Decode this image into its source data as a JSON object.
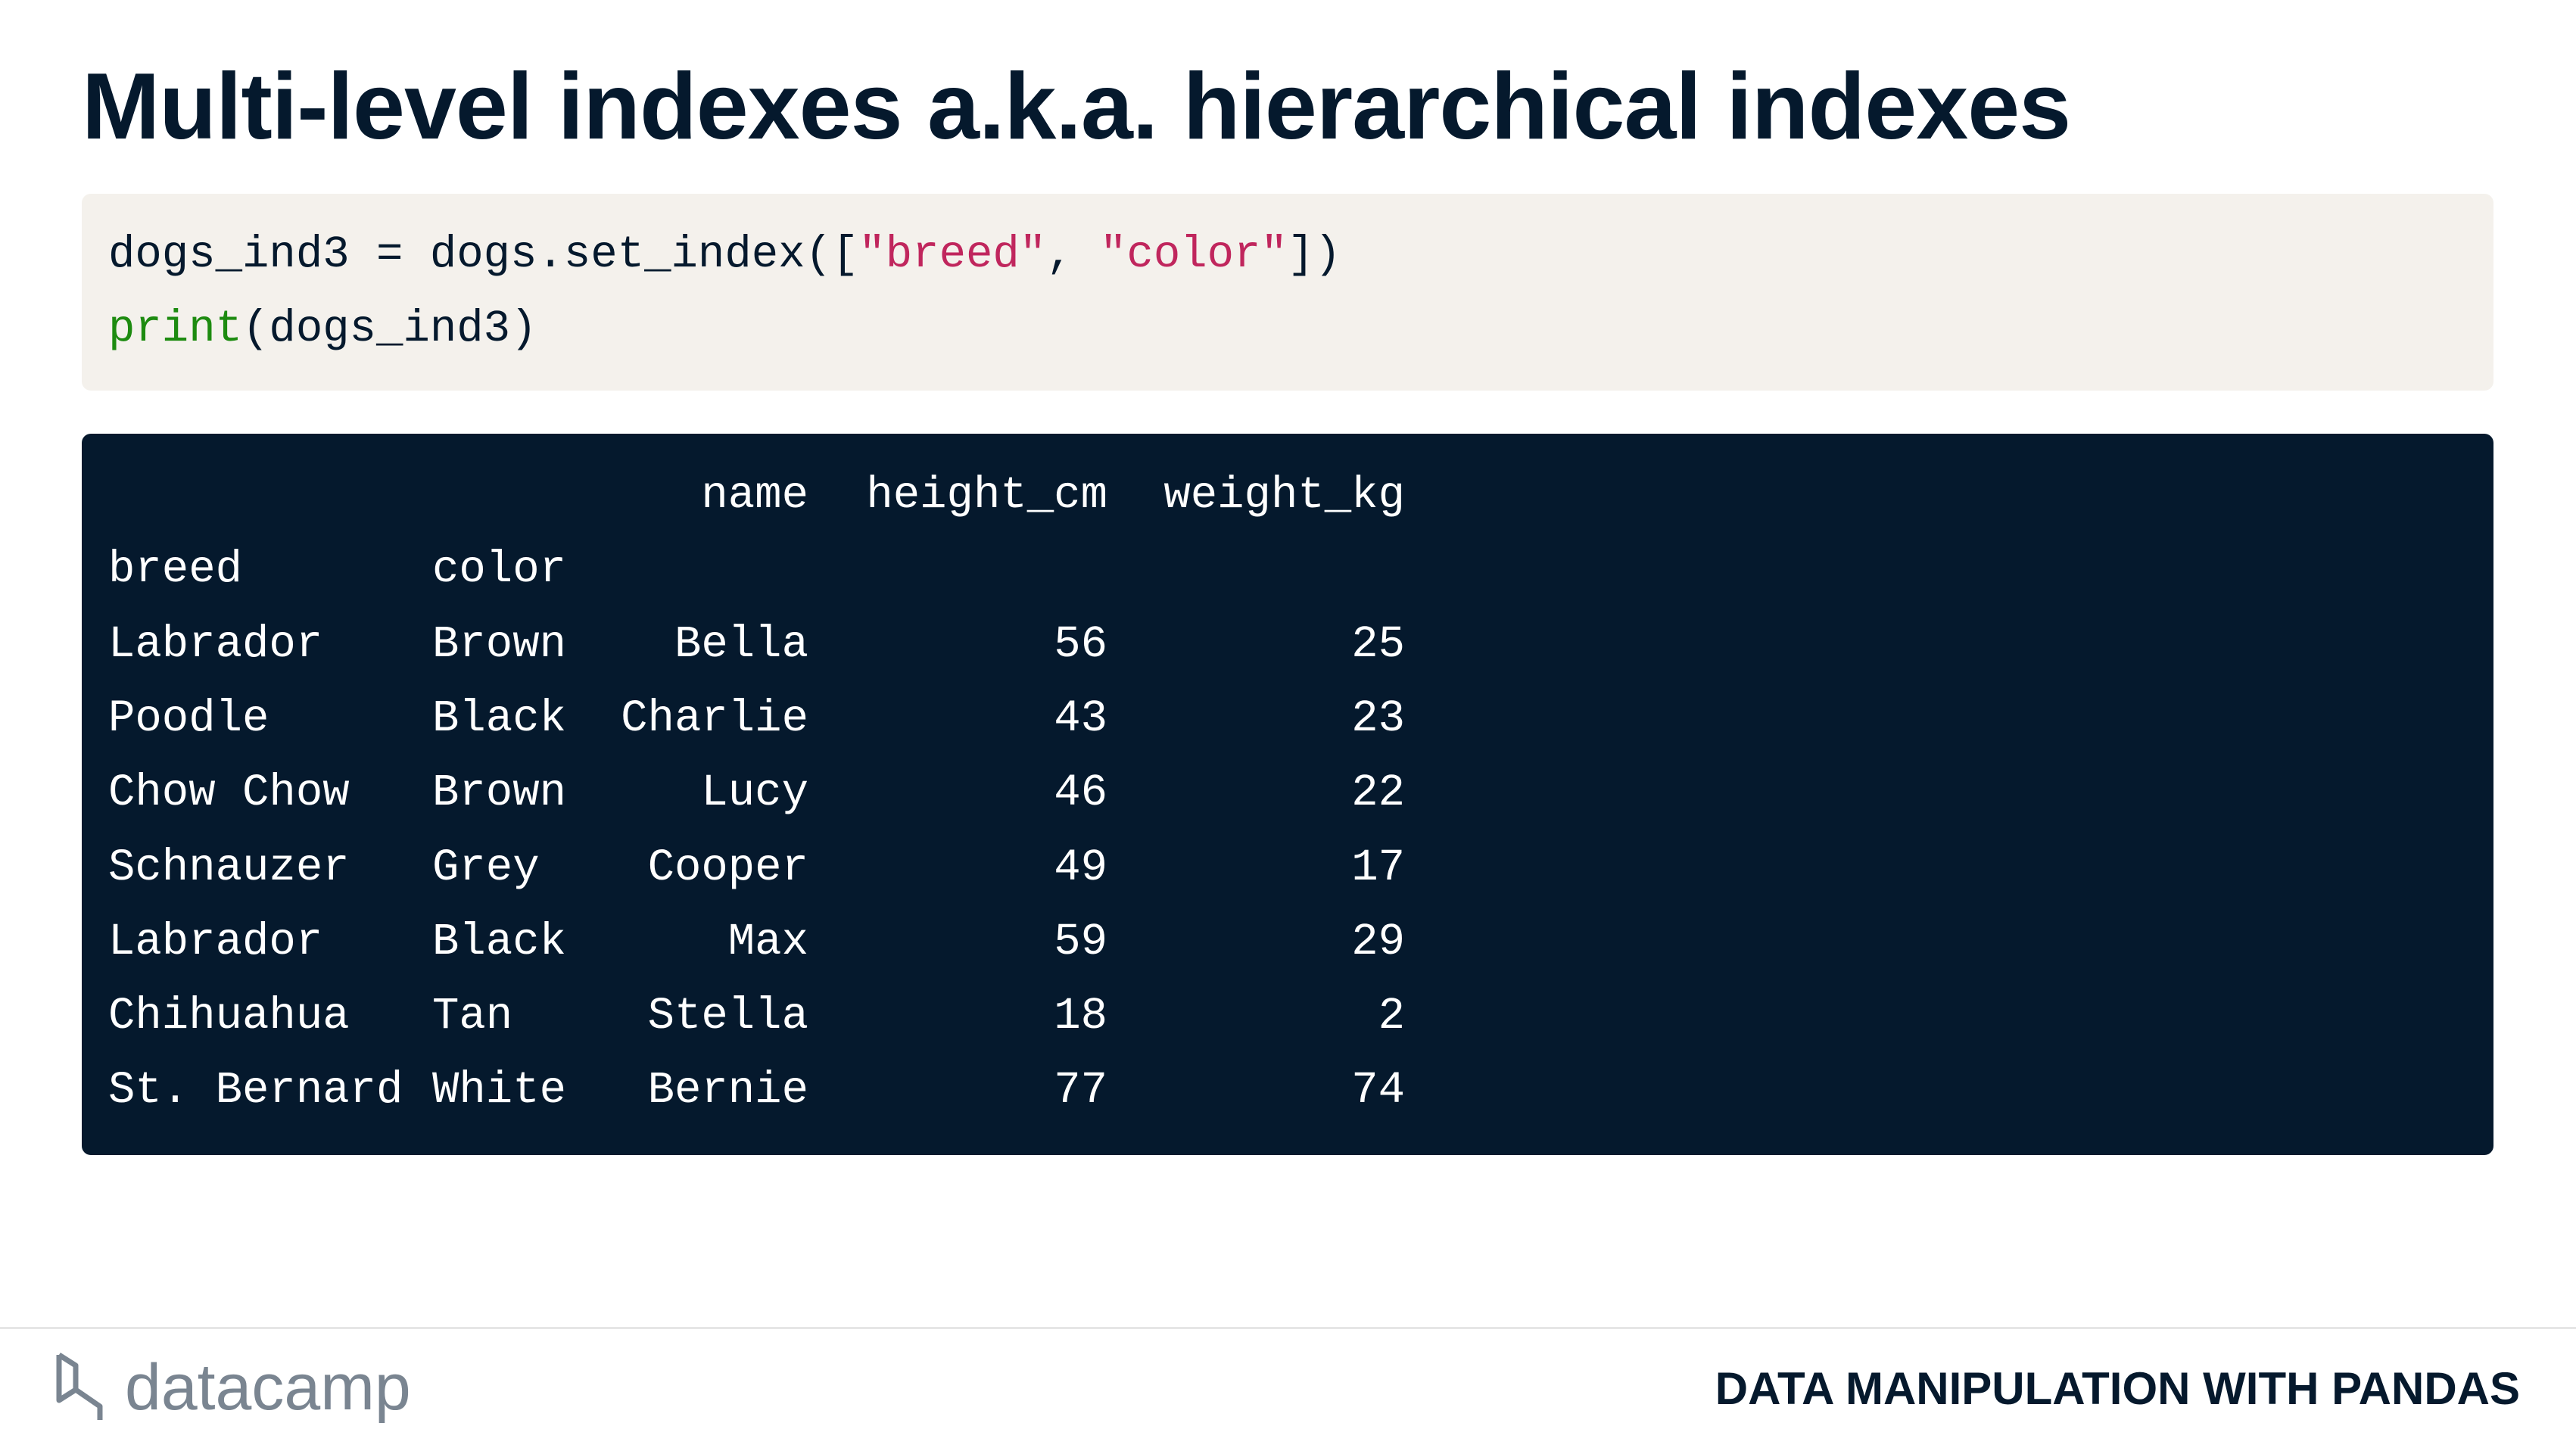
{
  "header": {
    "title": "Multi-level indexes a.k.a. hierarchical indexes"
  },
  "code": {
    "lines": [
      [
        {
          "text": "dogs_ind3 = dogs.set_index([",
          "color": "#05192d"
        },
        {
          "text": "\"breed\"",
          "color": "#c0265d"
        },
        {
          "text": ", ",
          "color": "#05192d"
        },
        {
          "text": "\"color\"",
          "color": "#c0265d"
        },
        {
          "text": "])",
          "color": "#05192d"
        }
      ],
      [
        {
          "text": "print",
          "color": "#1d8b10"
        },
        {
          "text": "(dogs_ind3)",
          "color": "#05192d"
        }
      ]
    ]
  },
  "output": {
    "columns": [
      "name",
      "height_cm",
      "weight_kg"
    ],
    "index_names": [
      "breed",
      "color"
    ],
    "rows": [
      [
        "Labrador",
        "Brown",
        "Bella",
        56,
        25
      ],
      [
        "Poodle",
        "Black",
        "Charlie",
        43,
        23
      ],
      [
        "Chow Chow",
        "Brown",
        "Lucy",
        46,
        22
      ],
      [
        "Schnauzer",
        "Grey",
        "Cooper",
        49,
        17
      ],
      [
        "Labrador",
        "Black",
        "Max",
        59,
        29
      ],
      [
        "Chihuahua",
        "Tan",
        "Stella",
        18,
        2
      ],
      [
        "St. Bernard",
        "White",
        "Bernie",
        77,
        74
      ]
    ]
  },
  "footer": {
    "logo": "datacamp",
    "course": "DATA MANIPULATION WITH PANDAS"
  }
}
